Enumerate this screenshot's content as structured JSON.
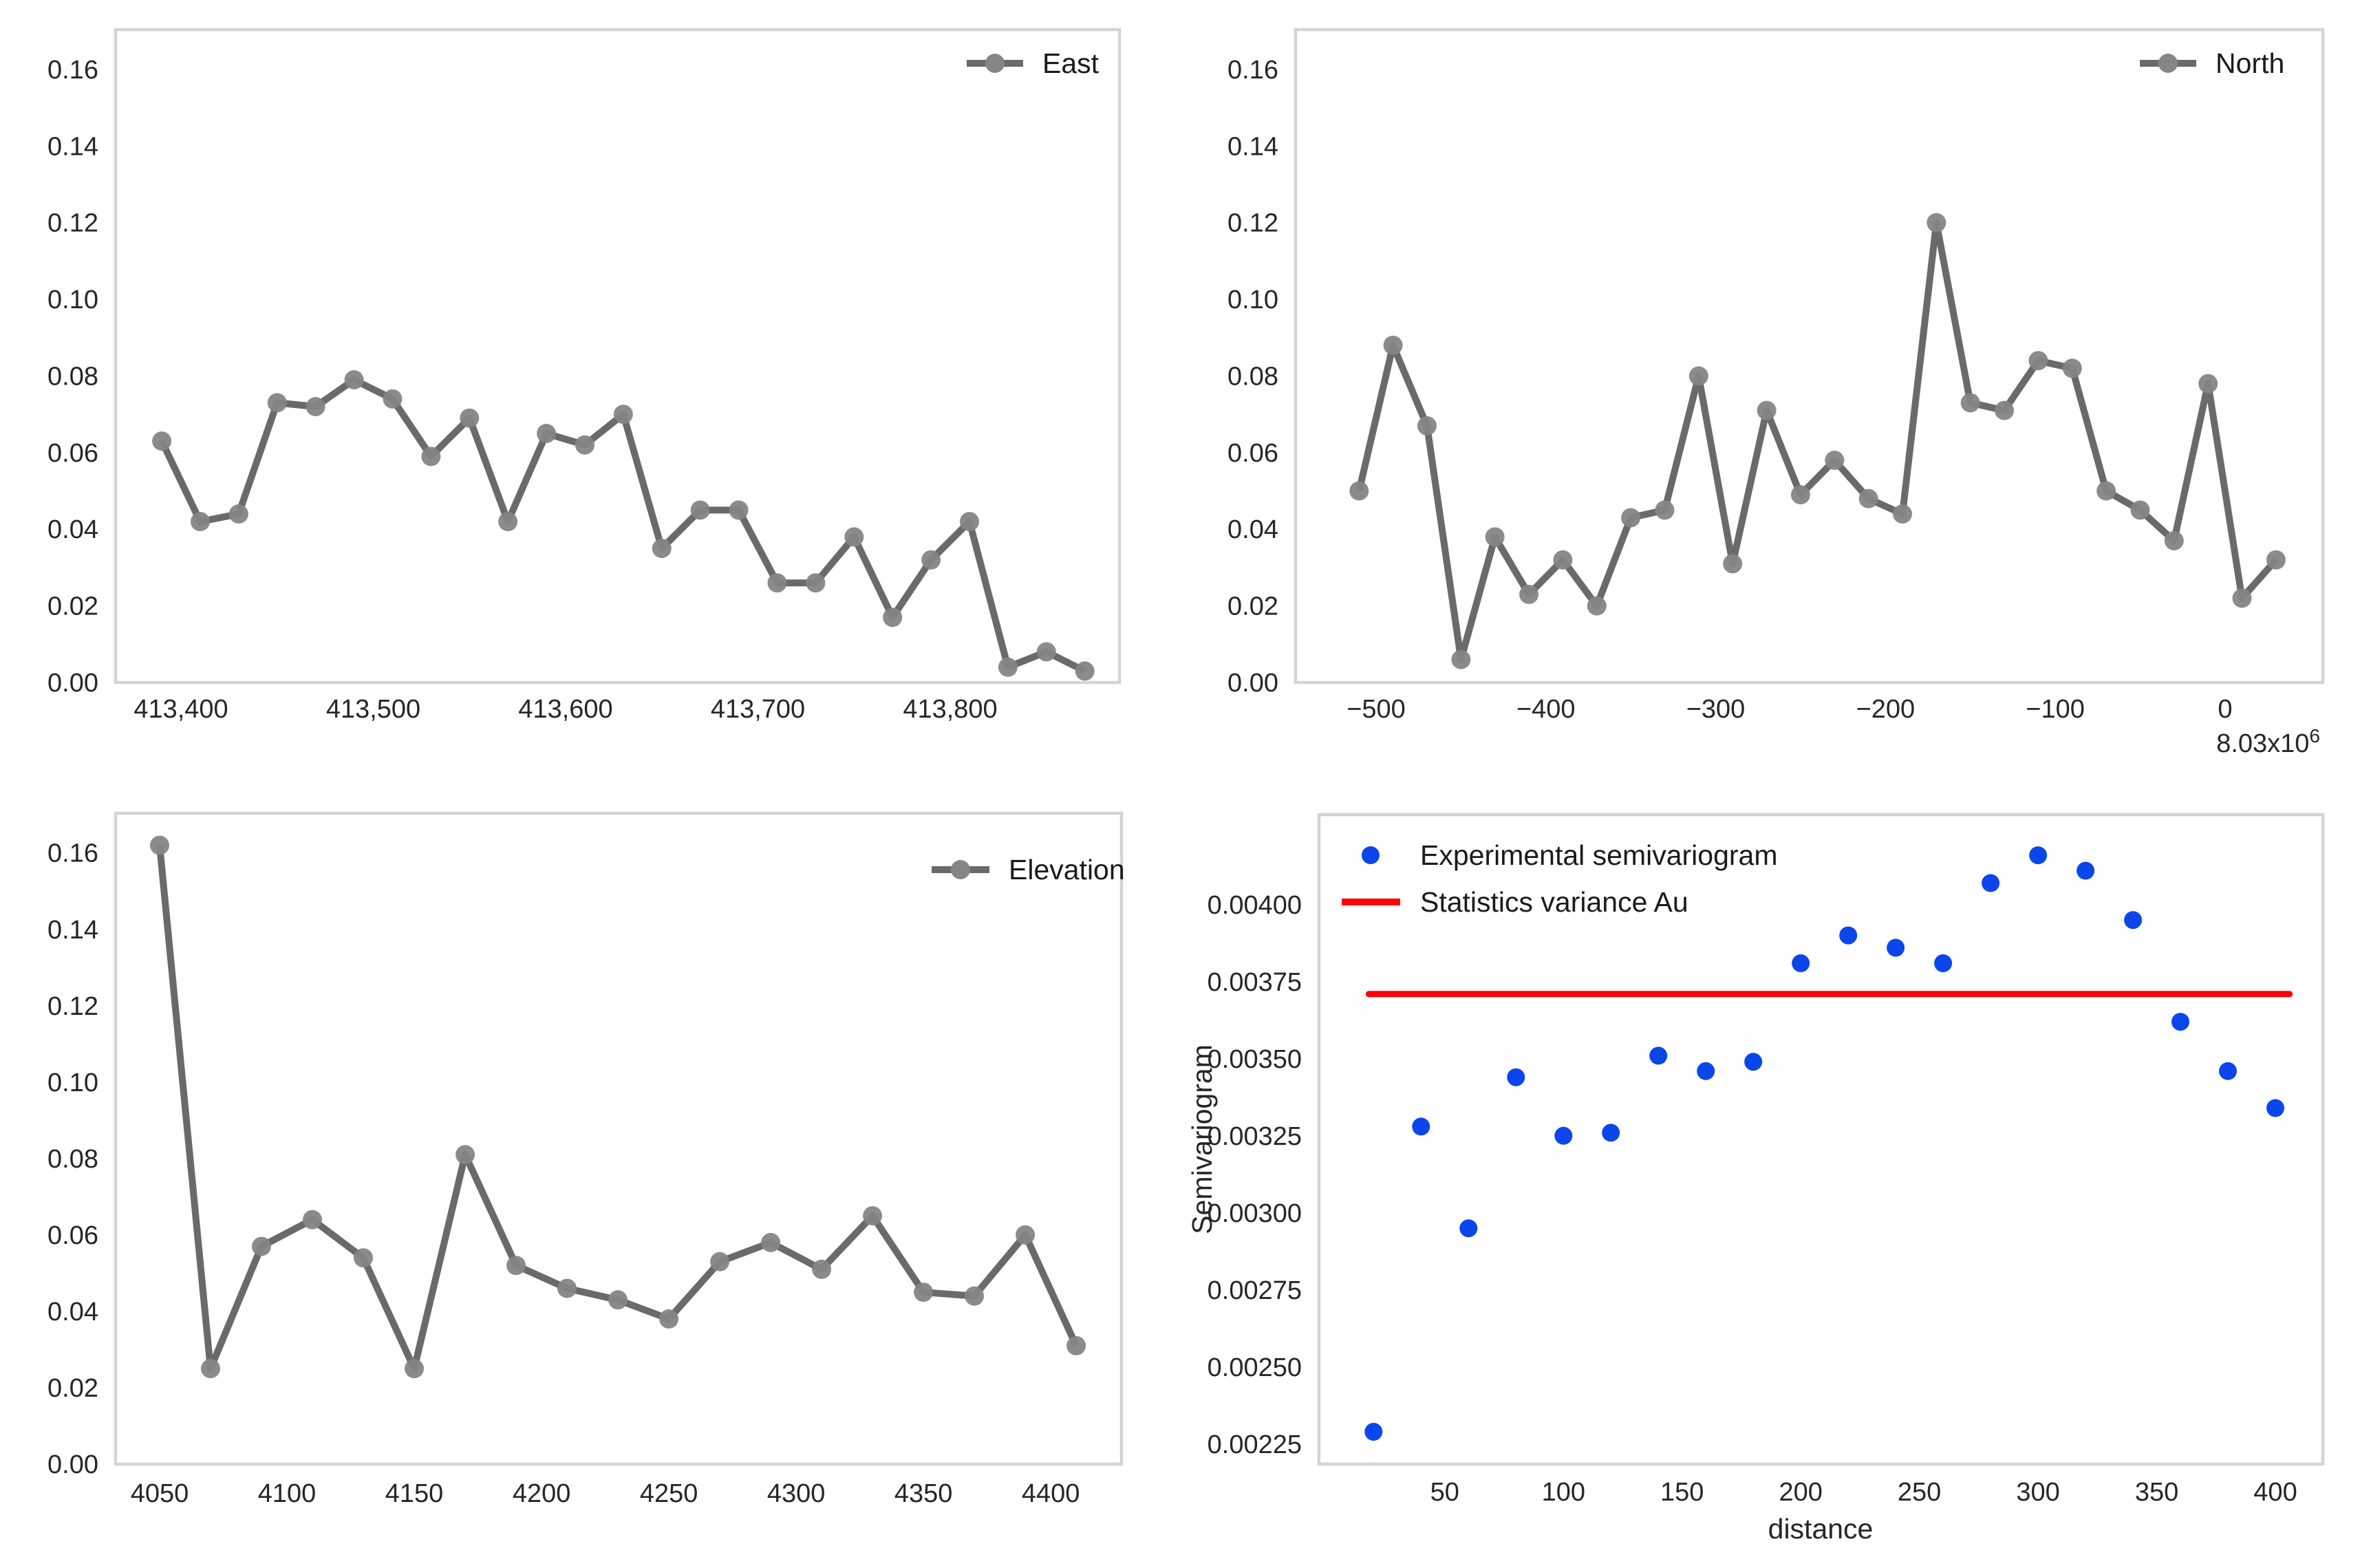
{
  "colors": {
    "background": "#ffffff",
    "spine": "#d4d4d4",
    "series_gray_line": "#6a6a6a",
    "series_gray_marker": "#858585",
    "scatter_blue": "#0b46ea",
    "variance_red": "#fb0307",
    "text": "#262626"
  },
  "chart_data": [
    {
      "id": "east",
      "type": "line",
      "legend": "East",
      "xlim": [
        413366,
        413888
      ],
      "ylim": [
        0,
        0.1704
      ],
      "grid": false,
      "legend_position": "top-right",
      "xticks": {
        "values": [
          413400,
          413500,
          413600,
          413700,
          413800
        ],
        "labels": [
          "413,400",
          "413,500",
          "413,600",
          "413,700",
          "413,800"
        ]
      },
      "yticks": {
        "values": [
          0.0,
          0.02,
          0.04,
          0.06,
          0.08,
          0.1,
          0.12,
          0.14,
          0.16
        ],
        "labels": [
          "0.00",
          "0.02",
          "0.04",
          "0.06",
          "0.08",
          "0.10",
          "0.12",
          "0.14",
          "0.16"
        ]
      },
      "x": [
        413390,
        413410,
        413430,
        413450,
        413470,
        413490,
        413510,
        413530,
        413550,
        413570,
        413590,
        413610,
        413630,
        413650,
        413670,
        413690,
        413710,
        413730,
        413750,
        413770,
        413790,
        413810,
        413830,
        413850,
        413870
      ],
      "y": [
        0.063,
        0.042,
        0.044,
        0.073,
        0.072,
        0.079,
        0.074,
        0.059,
        0.069,
        0.042,
        0.065,
        0.062,
        0.07,
        0.035,
        0.045,
        0.045,
        0.026,
        0.026,
        0.038,
        0.017,
        0.032,
        0.042,
        0.004,
        0.008,
        0.003
      ]
    },
    {
      "id": "north",
      "type": "line",
      "legend": "North",
      "xlim": [
        -547.4,
        57.6
      ],
      "ylim": [
        0,
        0.1704
      ],
      "grid": false,
      "legend_position": "top-right",
      "offset": {
        "base": "8.03x10",
        "exp": "6"
      },
      "xticks": {
        "values": [
          -500,
          -400,
          -300,
          -200,
          -100,
          0
        ],
        "labels": [
          "−500",
          "−400",
          "−300",
          "−200",
          "−100",
          "0"
        ]
      },
      "yticks": {
        "values": [
          0.0,
          0.02,
          0.04,
          0.06,
          0.08,
          0.1,
          0.12,
          0.14,
          0.16
        ],
        "labels": [
          "0.00",
          "0.02",
          "0.04",
          "0.06",
          "0.08",
          "0.10",
          "0.12",
          "0.14",
          "0.16"
        ]
      },
      "x": [
        -510,
        -490,
        -470,
        -450,
        -430,
        -410,
        -390,
        -370,
        -350,
        -330,
        -310,
        -290,
        -270,
        -250,
        -230,
        -210,
        -190,
        -170,
        -150,
        -130,
        -110,
        -90,
        -70,
        -50,
        -30,
        -10,
        10,
        30
      ],
      "y": [
        0.05,
        0.088,
        0.067,
        0.006,
        0.038,
        0.023,
        0.032,
        0.02,
        0.043,
        0.045,
        0.08,
        0.031,
        0.071,
        0.049,
        0.058,
        0.048,
        0.044,
        0.12,
        0.073,
        0.071,
        0.084,
        0.082,
        0.05,
        0.045,
        0.037,
        0.078,
        0.022,
        0.032
      ]
    },
    {
      "id": "elevation",
      "type": "line",
      "legend": "Elevation",
      "xlim": [
        4032.7,
        4427.8
      ],
      "ylim": [
        0,
        0.1704
      ],
      "grid": false,
      "legend_position": "top-right",
      "xticks": {
        "values": [
          4050,
          4100,
          4150,
          4200,
          4250,
          4300,
          4350,
          4400
        ],
        "labels": [
          "4050",
          "4100",
          "4150",
          "4200",
          "4250",
          "4300",
          "4350",
          "4400"
        ]
      },
      "yticks": {
        "values": [
          0.0,
          0.02,
          0.04,
          0.06,
          0.08,
          0.1,
          0.12,
          0.14,
          0.16
        ],
        "labels": [
          "0.00",
          "0.02",
          "0.04",
          "0.06",
          "0.08",
          "0.10",
          "0.12",
          "0.14",
          "0.16"
        ]
      },
      "x": [
        4050,
        4070,
        4090,
        4110,
        4130,
        4150,
        4170,
        4190,
        4210,
        4230,
        4250,
        4270,
        4290,
        4310,
        4330,
        4350,
        4370,
        4390,
        4410
      ],
      "y": [
        0.162,
        0.025,
        0.057,
        0.064,
        0.054,
        0.025,
        0.081,
        0.052,
        0.046,
        0.043,
        0.038,
        0.053,
        0.058,
        0.051,
        0.065,
        0.045,
        0.044,
        0.06,
        0.031
      ]
    },
    {
      "id": "semivariogram",
      "type": "scatter",
      "xlabel": "distance",
      "ylabel": "Semivariogram",
      "xlim": [
        -3,
        420
      ],
      "ylim": [
        0.002185,
        0.004292
      ],
      "grid": false,
      "legend_position": "top-left",
      "legend": [
        {
          "label": "Experimental semivariogram",
          "marker": "dot",
          "color": "#0b46ea"
        },
        {
          "label": "Statistics variance Au",
          "marker": "line",
          "color": "#fb0307"
        }
      ],
      "xticks": {
        "values": [
          50,
          100,
          150,
          200,
          250,
          300,
          350,
          400
        ],
        "labels": [
          "50",
          "100",
          "150",
          "200",
          "250",
          "300",
          "350",
          "400"
        ]
      },
      "yticks": {
        "values": [
          0.00225,
          0.0025,
          0.00275,
          0.003,
          0.00325,
          0.0035,
          0.00375,
          0.004
        ],
        "labels": [
          "0.00225",
          "0.00250",
          "0.00275",
          "0.00300",
          "0.00325",
          "0.00350",
          "0.00375",
          "0.00400"
        ]
      },
      "x": [
        20,
        40,
        60,
        80,
        100,
        120,
        140,
        160,
        180,
        200,
        220,
        240,
        260,
        280,
        300,
        320,
        340,
        360,
        380,
        400
      ],
      "y": [
        0.00229,
        0.00328,
        0.00295,
        0.00344,
        0.00325,
        0.00326,
        0.00351,
        0.00346,
        0.00349,
        0.00381,
        0.0039,
        0.00386,
        0.00381,
        0.00407,
        0.00416,
        0.00411,
        0.00395,
        0.00362,
        0.00346,
        0.00334
      ],
      "hline": {
        "y": 0.00371,
        "x0": 18,
        "x1": 406
      }
    }
  ]
}
